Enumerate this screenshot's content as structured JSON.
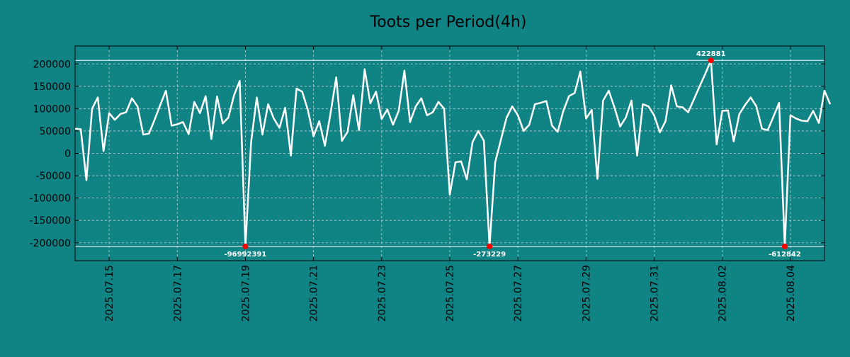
{
  "colors": {
    "background": "#108385",
    "line": "#ffffff",
    "marker": "#ff0000",
    "grid": "#b9d6d6",
    "text": "#000000"
  },
  "chart_data": {
    "type": "line",
    "title": "Toots per Period(4h)",
    "xlabel": "",
    "ylabel": "",
    "grid": true,
    "ylim": [
      -240000,
      240000
    ],
    "x_start": "2025-07-14T00:00",
    "x_end": "2025-08-05T00:00",
    "period_hours": 4,
    "yticks": [
      {
        "value": 200000,
        "label": "200000"
      },
      {
        "value": 150000,
        "label": "150000"
      },
      {
        "value": 100000,
        "label": "100000"
      },
      {
        "value": 50000,
        "label": "50000"
      },
      {
        "value": 0,
        "label": "0"
      },
      {
        "value": -50000,
        "label": "-50000"
      },
      {
        "value": -100000,
        "label": "-100000"
      },
      {
        "value": -150000,
        "label": "-150000"
      },
      {
        "value": -200000,
        "label": "-200000"
      }
    ],
    "xticks": [
      {
        "date": "2025-07-15T00:00",
        "label": "2025.07.15"
      },
      {
        "date": "2025-07-17T00:00",
        "label": "2025.07.17"
      },
      {
        "date": "2025-07-19T00:00",
        "label": "2025.07.19"
      },
      {
        "date": "2025-07-21T00:00",
        "label": "2025.07.21"
      },
      {
        "date": "2025-07-23T00:00",
        "label": "2025.07.23"
      },
      {
        "date": "2025-07-25T00:00",
        "label": "2025.07.25"
      },
      {
        "date": "2025-07-27T00:00",
        "label": "2025.07.27"
      },
      {
        "date": "2025-07-29T00:00",
        "label": "2025.07.29"
      },
      {
        "date": "2025-07-31T00:00",
        "label": "2025.07.31"
      },
      {
        "date": "2025-08-02T00:00",
        "label": "2025.08.02"
      },
      {
        "date": "2025-08-04T00:00",
        "label": "2025.08.04"
      }
    ],
    "hlines": [
      208000,
      -208000
    ],
    "series": [
      {
        "name": "Toots",
        "values": [
          55000,
          54000,
          -60000,
          100000,
          125000,
          5000,
          90000,
          75000,
          88000,
          92000,
          123000,
          105000,
          42000,
          44000,
          75000,
          108000,
          140000,
          62000,
          65000,
          70000,
          43000,
          115000,
          90000,
          128000,
          32000,
          127000,
          67000,
          80000,
          130000,
          162000,
          -208000,
          25000,
          125000,
          42000,
          110000,
          78000,
          57000,
          102000,
          -5000,
          145000,
          138000,
          97000,
          38000,
          72000,
          17000,
          90000,
          170000,
          28000,
          48000,
          130000,
          52000,
          188000,
          112000,
          138000,
          77000,
          98000,
          64000,
          95000,
          185000,
          70000,
          105000,
          123000,
          85000,
          92000,
          115000,
          100000,
          -92000,
          -20000,
          -18000,
          -58000,
          25000,
          50000,
          28000,
          -208000,
          -20000,
          30000,
          80000,
          105000,
          85000,
          50000,
          64000,
          110000,
          113000,
          117000,
          62000,
          48000,
          95000,
          128000,
          135000,
          183000,
          78000,
          97000,
          -57000,
          118000,
          140000,
          103000,
          60000,
          80000,
          118000,
          -5000,
          110000,
          105000,
          85000,
          47000,
          72000,
          152000,
          105000,
          103000,
          92000,
          121000,
          150000,
          178000,
          208000,
          20000,
          95000,
          96000,
          27000,
          88000,
          108000,
          125000,
          105000,
          55000,
          52000,
          82000,
          113000,
          -208000,
          85000,
          78000,
          73000,
          72000,
          95000,
          68000,
          140000,
          110000
        ]
      }
    ],
    "markers": [
      {
        "index": 30,
        "label": "-96992391",
        "position": "below"
      },
      {
        "index": 73,
        "label": "-273229",
        "position": "below"
      },
      {
        "index": 112,
        "label": "422881",
        "position": "above"
      },
      {
        "index": 125,
        "label": "-612842",
        "position": "below"
      }
    ]
  }
}
